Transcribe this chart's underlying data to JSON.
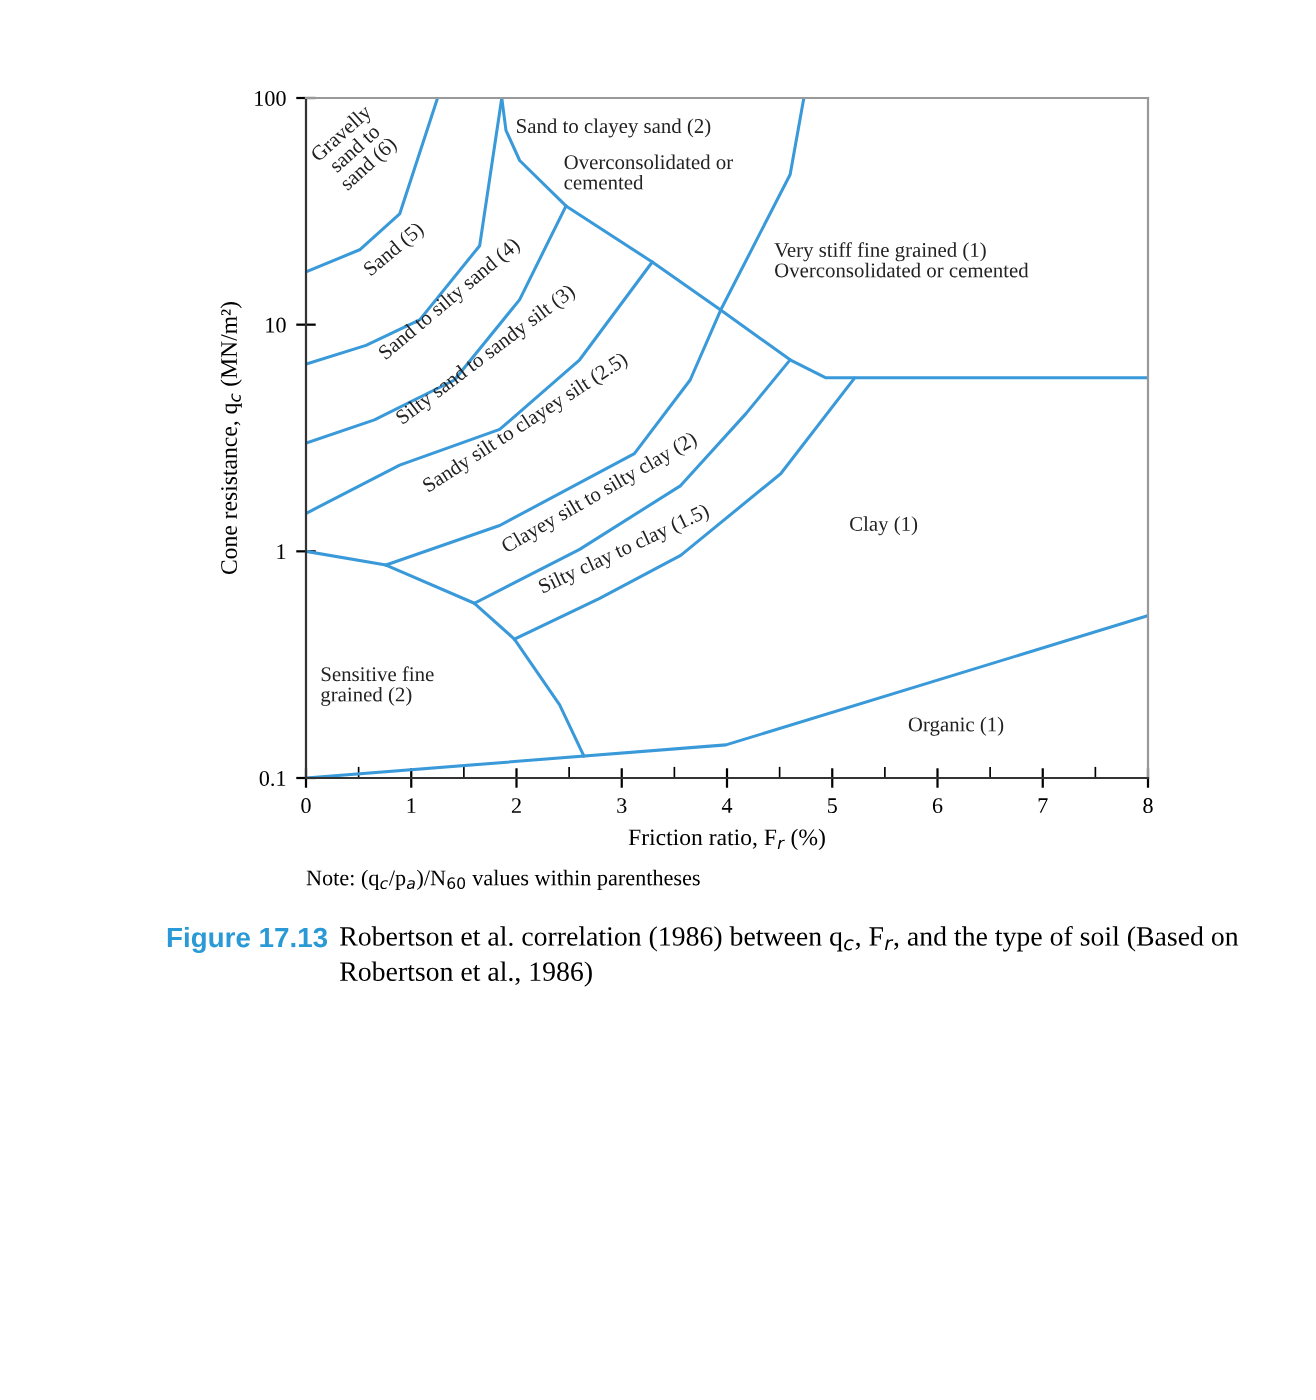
{
  "chart_data": {
    "type": "line",
    "xlabel": "Friction ratio, F$_{r}$ (%)",
    "ylabel": "Cone resistance, q$_{c}$ (MN/m²)",
    "log": "y",
    "xlim": [
      0,
      8
    ],
    "xticks": [
      0,
      1,
      2,
      3,
      4,
      5,
      6,
      7,
      8
    ],
    "ylim": [
      0.1,
      100
    ],
    "yticks": [
      0.1,
      1,
      10,
      100
    ],
    "grid": false,
    "legend": false,
    "marker": "none",
    "line_style": "solid",
    "series": [
      {
        "color": "#3a9ad9",
        "x": [
          0,
          0.76,
          1.6,
          1.98,
          2.41,
          2.64
        ],
        "values": [
          1.0,
          0.87,
          0.59,
          0.41,
          0.21,
          0.125
        ]
      },
      {
        "color": "#3a9ad9",
        "x": [
          0,
          3.99,
          8
        ],
        "values": [
          0.1,
          0.14,
          0.52
        ]
      },
      {
        "color": "#3a9ad9",
        "x": [
          1.25,
          0.89,
          0.51,
          0
        ],
        "values": [
          100,
          30.8,
          21.4,
          17.1
        ]
      },
      {
        "color": "#3a9ad9",
        "x": [
          1.86,
          1.65,
          1.08,
          0.57,
          0
        ],
        "values": [
          100,
          22.3,
          10.5,
          8.1,
          6.7
        ]
      },
      {
        "color": "#3a9ad9",
        "x": [
          2.47,
          2.03,
          1.41,
          0.65,
          0
        ],
        "values": [
          33.4,
          12.9,
          5.7,
          3.8,
          3.0
        ]
      },
      {
        "color": "#3a9ad9",
        "x": [
          3.29,
          2.6,
          1.84,
          0.89,
          0
        ],
        "values": [
          18.9,
          7.0,
          3.45,
          2.4,
          1.47
        ]
      },
      {
        "color": "#3a9ad9",
        "x": [
          0.76,
          1.84,
          3.12,
          3.65,
          3.94,
          4.6,
          4.73
        ],
        "values": [
          0.87,
          1.3,
          2.7,
          5.7,
          11.6,
          46,
          100
        ]
      },
      {
        "color": "#3a9ad9",
        "x": [
          1.6,
          2.6,
          3.56,
          4.18,
          4.6
        ],
        "values": [
          0.59,
          1.02,
          1.95,
          4.05,
          7.0
        ]
      },
      {
        "color": "#3a9ad9",
        "x": [
          1.98,
          2.79,
          3.56,
          4.51,
          5.21
        ],
        "values": [
          0.41,
          0.62,
          0.96,
          2.2,
          5.8
        ]
      },
      {
        "color": "#3a9ad9",
        "x": [
          1.86,
          1.9,
          2.03,
          2.47,
          3.29,
          3.94,
          4.6,
          4.94,
          8
        ],
        "values": [
          100,
          72,
          53,
          33.4,
          18.9,
          11.6,
          7.0,
          5.83,
          5.83
        ]
      }
    ],
    "annotations": [
      "Gravelly\nsand to\nsand (6)",
      "Sand (5)",
      "Sand to silty sand (4)",
      "Silty sand to sandy silt (3)",
      "Sandy silt to clayey silt (2.5)",
      "Clayey silt to silty clay (2)",
      "Silty clay to clay (1.5)",
      "Sand to clayey sand (2)",
      "Overconsolidated or\ncemented",
      "Very stiff fine grained (1)\nOverconsolidated or cemented",
      "Clay (1)",
      "Sensitive fine\ngrained (2)",
      "Organic (1)",
      "Note: (q$_{c}$/p$_{a}$)/N$_{60}$ values within parentheses",
      "Figure 17.13",
      "Robertson et al. correlation (1986) between q$_{c}$, F$_{r}$, and the type of soil (Based on Robertson et al., 1986)"
    ]
  }
}
